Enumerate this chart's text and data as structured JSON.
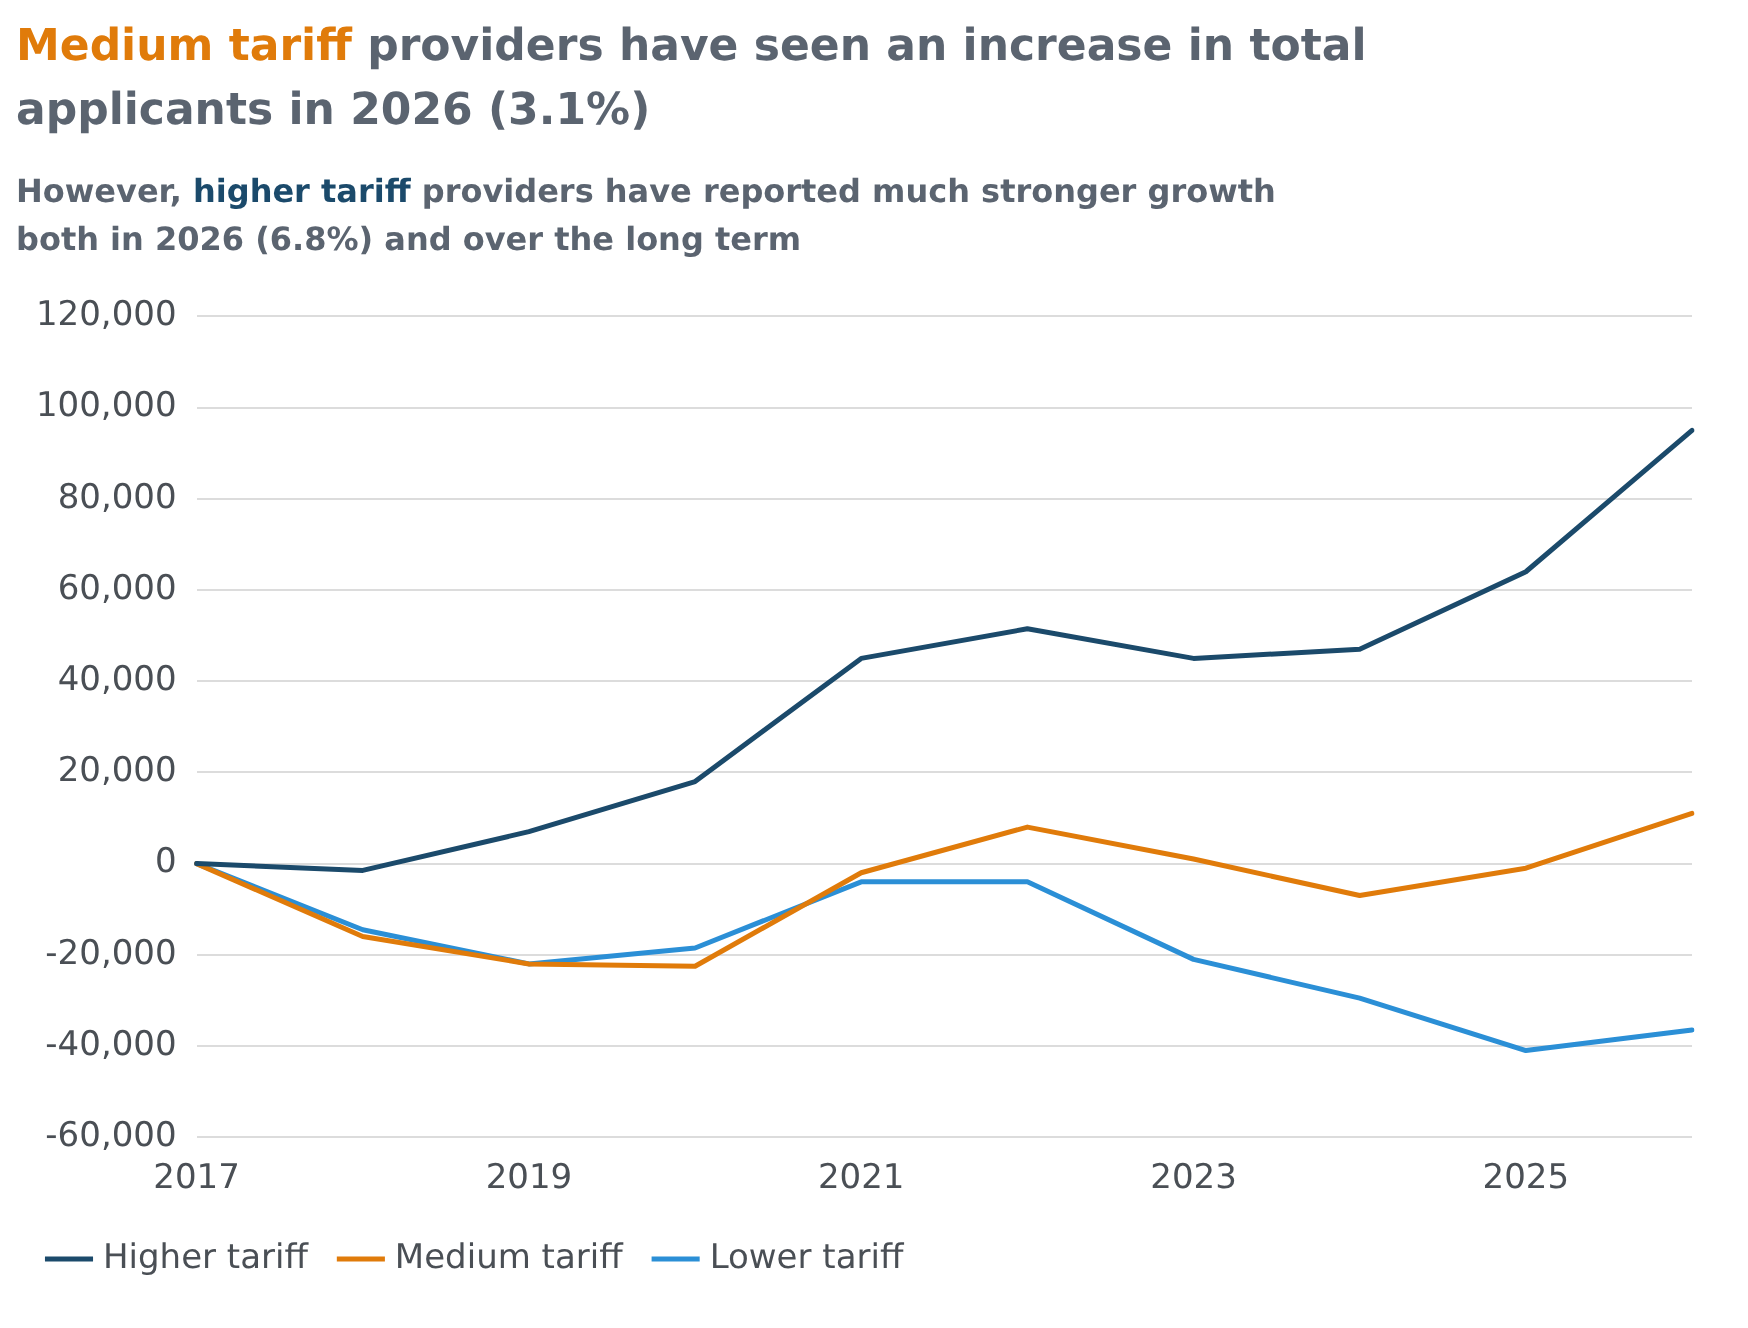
{
  "chart_data": {
    "type": "line",
    "title": "Medium tariff providers have seen an increase in total applicants in 2026 (3.1%)",
    "subtitle": "However, higher tariff providers have reported much stronger growth both in 2026 (6.8%) and over the long term",
    "categories": [
      "2017",
      null,
      "2019",
      null,
      "2021",
      null,
      "2023",
      null,
      "2025",
      null
    ],
    "series": [
      {
        "name": "Higher tariff",
        "color": "#1b4a6b",
        "values": [
          0,
          -1500,
          7000,
          18000,
          45000,
          51500,
          45000,
          47000,
          64000,
          95000
        ]
      },
      {
        "name": "Medium tariff",
        "color": "#e07b0a",
        "values": [
          0,
          -16000,
          -22000,
          -22500,
          -2000,
          8000,
          1000,
          -7000,
          -1000,
          11000
        ]
      },
      {
        "name": "Lower tariff",
        "color": "#2b8fd6",
        "values": [
          0,
          -14500,
          -22000,
          -18500,
          -4000,
          -4000,
          -21000,
          -29500,
          -41000,
          -36500
        ]
      }
    ],
    "ylim": [
      -60000,
      120000
    ],
    "yticks": [
      {
        "value": -60000,
        "label": "-60,000"
      },
      {
        "value": -40000,
        "label": "-40,000"
      },
      {
        "value": -20000,
        "label": "-20,000"
      },
      0,
      {
        "value": 20000,
        "label": "20,000"
      },
      {
        "value": 40000,
        "label": "40,000"
      },
      {
        "value": 60000,
        "label": "60,000"
      },
      {
        "value": 80000,
        "label": "80,000"
      },
      {
        "value": 100000,
        "label": "100,000"
      },
      {
        "value": 120000,
        "label": "120,000"
      }
    ],
    "grid": "y",
    "legend": "bottom left",
    "marker": "none",
    "line_style": "solid"
  }
}
